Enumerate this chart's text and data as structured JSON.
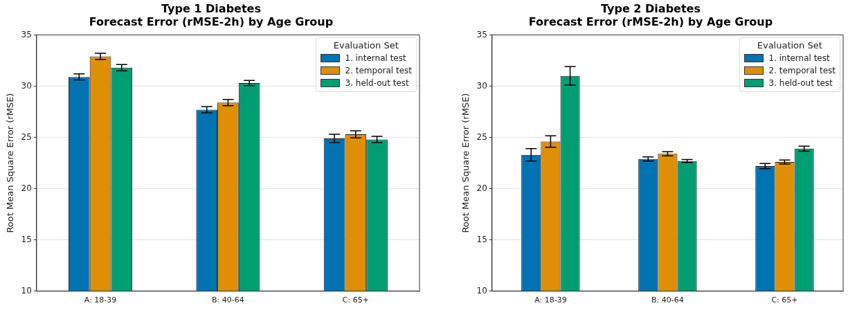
{
  "chart_data": [
    {
      "type": "bar",
      "title": "Type 1 Diabetes\nForecast Error (rMSE-2h) by Age Group",
      "ylabel": "Root Mean Square Error (rMSE)",
      "legend_title": "Evaluation Set",
      "legend": "top right",
      "grid": "y",
      "categories": [
        "A: 18-39",
        "B: 40-64",
        "C: 65+"
      ],
      "ylim": [
        10,
        35
      ],
      "yticks": [
        10,
        15,
        20,
        25,
        30,
        35
      ],
      "series": [
        {
          "name": "1. internal test",
          "color": "#0173b2",
          "values": [
            30.9,
            27.7,
            24.9
          ],
          "errors": [
            0.3,
            0.3,
            0.4
          ]
        },
        {
          "name": "2. temporal test",
          "color": "#de8f05",
          "values": [
            32.9,
            28.4,
            25.3
          ],
          "errors": [
            0.3,
            0.3,
            0.35
          ]
        },
        {
          "name": "3. held-out test",
          "color": "#029e73",
          "values": [
            31.8,
            30.3,
            24.8
          ],
          "errors": [
            0.3,
            0.25,
            0.3
          ]
        }
      ]
    },
    {
      "type": "bar",
      "title": "Type 2 Diabetes\nForecast Error (rMSE-2h) by Age Group",
      "ylabel": "Root Mean Square Error (rMSE)",
      "legend_title": "Evaluation Set",
      "legend": "top right",
      "grid": "y",
      "categories": [
        "A: 18-39",
        "B: 40-64",
        "C: 65+"
      ],
      "ylim": [
        10,
        35
      ],
      "yticks": [
        10,
        15,
        20,
        25,
        30,
        35
      ],
      "series": [
        {
          "name": "1. internal test",
          "color": "#0173b2",
          "values": [
            23.3,
            22.9,
            22.2
          ],
          "errors": [
            0.6,
            0.2,
            0.25
          ]
        },
        {
          "name": "2. temporal test",
          "color": "#de8f05",
          "values": [
            24.6,
            23.4,
            22.6
          ],
          "errors": [
            0.55,
            0.2,
            0.2
          ]
        },
        {
          "name": "3. held-out test",
          "color": "#029e73",
          "values": [
            31.0,
            22.7,
            23.9
          ],
          "errors": [
            0.9,
            0.15,
            0.25
          ]
        }
      ]
    }
  ]
}
